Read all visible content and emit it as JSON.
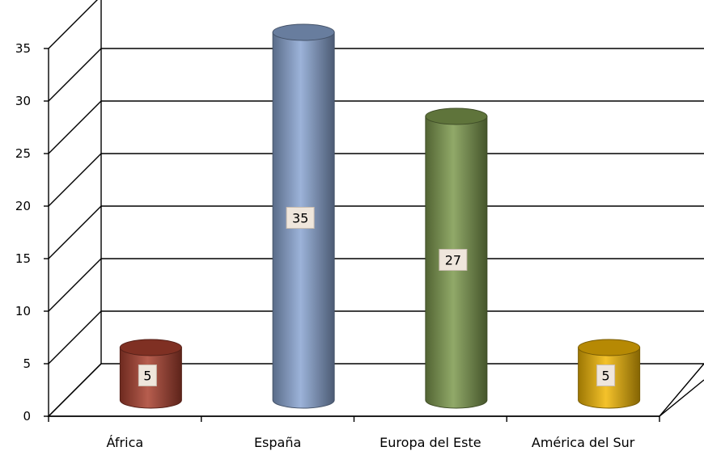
{
  "chart_data": {
    "type": "bar",
    "style": "3d-cylinder",
    "categories": [
      "África",
      "España",
      "Europa del Este",
      "América del Sur"
    ],
    "values": [
      5,
      35,
      27,
      5
    ],
    "colors": [
      "#a9402f",
      "#8aa6d2",
      "#7e9a4e",
      "#f2b705"
    ],
    "title": "",
    "xlabel": "",
    "ylabel": "",
    "ylim": [
      0,
      35
    ],
    "y_ticks": [
      0,
      5,
      10,
      15,
      20,
      25,
      30,
      35
    ],
    "grid": true,
    "legend": "none",
    "data_labels": true
  }
}
